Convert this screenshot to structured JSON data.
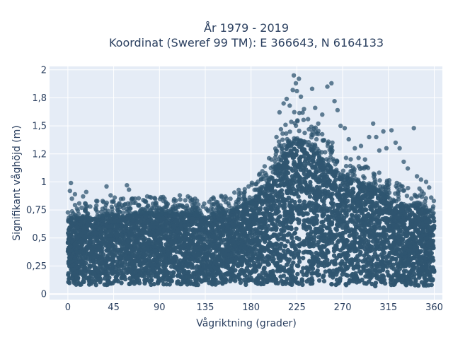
{
  "chart_data": {
    "type": "scatter",
    "title_line1": "År 1979 - 2019",
    "title_line2": "Koordinat (Sweref 99 TM): E 366643, N 6164133",
    "xlabel": "Vågriktning (grader)",
    "ylabel": "Signifikant våghöjd (m)",
    "xlim": [
      -18,
      368
    ],
    "ylim": [
      -0.05,
      2.03
    ],
    "xticks": [
      0,
      45,
      90,
      135,
      180,
      225,
      270,
      315,
      360
    ],
    "xtick_labels": [
      "0",
      "45",
      "90",
      "135",
      "180",
      "225",
      "270",
      "315",
      "360"
    ],
    "yticks": [
      0,
      0.25,
      0.5,
      0.75,
      1,
      1.25,
      1.5,
      1.75,
      2
    ],
    "ytick_labels": [
      "0",
      "0,25",
      "0,5",
      "0,75",
      "1",
      "1,2",
      "1,5",
      "1,8",
      "2"
    ],
    "grid": true,
    "marker_color": "#2f5570",
    "plot_background": "#e5ecf6",
    "envelope": {
      "direction": [
        0,
        20,
        45,
        90,
        135,
        160,
        180,
        195,
        205,
        215,
        225,
        240,
        255,
        270,
        285,
        300,
        315,
        330,
        345,
        355,
        360
      ],
      "core_upper_height": [
        0.66,
        0.68,
        0.7,
        0.72,
        0.7,
        0.74,
        0.82,
        0.95,
        1.15,
        1.3,
        1.38,
        1.3,
        1.15,
        1.05,
        1.0,
        0.95,
        0.85,
        0.8,
        0.78,
        0.72,
        0.68
      ],
      "core_lower_height": [
        0.08,
        0.08,
        0.08,
        0.08,
        0.08,
        0.08,
        0.08,
        0.08,
        0.08,
        0.08,
        0.08,
        0.08,
        0.08,
        0.08,
        0.07,
        0.07,
        0.07,
        0.07,
        0.07,
        0.07,
        0.08
      ]
    },
    "outlier_points": [
      {
        "x": 3,
        "y": 0.99
      },
      {
        "x": 2,
        "y": 0.92
      },
      {
        "x": 4,
        "y": 0.85
      },
      {
        "x": 7,
        "y": 0.89
      },
      {
        "x": 15,
        "y": 0.87
      },
      {
        "x": 18,
        "y": 0.91
      },
      {
        "x": 22,
        "y": 0.78
      },
      {
        "x": 28,
        "y": 0.83
      },
      {
        "x": 35,
        "y": 0.82
      },
      {
        "x": 38,
        "y": 0.96
      },
      {
        "x": 42,
        "y": 0.88
      },
      {
        "x": 46,
        "y": 0.86
      },
      {
        "x": 50,
        "y": 0.8
      },
      {
        "x": 58,
        "y": 0.97
      },
      {
        "x": 60,
        "y": 0.93
      },
      {
        "x": 63,
        "y": 0.85
      },
      {
        "x": 70,
        "y": 0.79
      },
      {
        "x": 78,
        "y": 0.87
      },
      {
        "x": 86,
        "y": 0.81
      },
      {
        "x": 95,
        "y": 0.85
      },
      {
        "x": 105,
        "y": 0.79
      },
      {
        "x": 110,
        "y": 0.88
      },
      {
        "x": 118,
        "y": 0.87
      },
      {
        "x": 125,
        "y": 0.85
      },
      {
        "x": 138,
        "y": 0.74
      },
      {
        "x": 150,
        "y": 0.79
      },
      {
        "x": 165,
        "y": 0.8
      },
      {
        "x": 175,
        "y": 0.84
      },
      {
        "x": 185,
        "y": 0.93
      },
      {
        "x": 195,
        "y": 1.06
      },
      {
        "x": 200,
        "y": 1.2
      },
      {
        "x": 205,
        "y": 1.4
      },
      {
        "x": 208,
        "y": 1.62
      },
      {
        "x": 212,
        "y": 1.7
      },
      {
        "x": 215,
        "y": 1.74
      },
      {
        "x": 218,
        "y": 1.68
      },
      {
        "x": 221,
        "y": 1.82
      },
      {
        "x": 222,
        "y": 1.95
      },
      {
        "x": 224,
        "y": 1.88
      },
      {
        "x": 225,
        "y": 1.81
      },
      {
        "x": 227,
        "y": 1.92
      },
      {
        "x": 229,
        "y": 1.76
      },
      {
        "x": 232,
        "y": 1.65
      },
      {
        "x": 236,
        "y": 1.56
      },
      {
        "x": 240,
        "y": 1.83
      },
      {
        "x": 243,
        "y": 1.66
      },
      {
        "x": 246,
        "y": 1.52
      },
      {
        "x": 250,
        "y": 1.6
      },
      {
        "x": 255,
        "y": 1.85
      },
      {
        "x": 259,
        "y": 1.88
      },
      {
        "x": 262,
        "y": 1.72
      },
      {
        "x": 265,
        "y": 1.64
      },
      {
        "x": 268,
        "y": 1.5
      },
      {
        "x": 272,
        "y": 1.48
      },
      {
        "x": 276,
        "y": 1.38
      },
      {
        "x": 282,
        "y": 1.3
      },
      {
        "x": 288,
        "y": 1.32
      },
      {
        "x": 292,
        "y": 1.2
      },
      {
        "x": 296,
        "y": 1.4
      },
      {
        "x": 300,
        "y": 1.52
      },
      {
        "x": 303,
        "y": 1.4
      },
      {
        "x": 306,
        "y": 1.28
      },
      {
        "x": 310,
        "y": 1.45
      },
      {
        "x": 313,
        "y": 1.3
      },
      {
        "x": 318,
        "y": 1.46
      },
      {
        "x": 322,
        "y": 1.35
      },
      {
        "x": 326,
        "y": 1.3
      },
      {
        "x": 330,
        "y": 1.18
      },
      {
        "x": 334,
        "y": 1.12
      },
      {
        "x": 340,
        "y": 1.48
      },
      {
        "x": 343,
        "y": 1.05
      },
      {
        "x": 347,
        "y": 1.02
      },
      {
        "x": 352,
        "y": 1.0
      },
      {
        "x": 355,
        "y": 0.95
      },
      {
        "x": 357,
        "y": 0.86
      },
      {
        "x": 359,
        "y": 0.78
      }
    ]
  }
}
